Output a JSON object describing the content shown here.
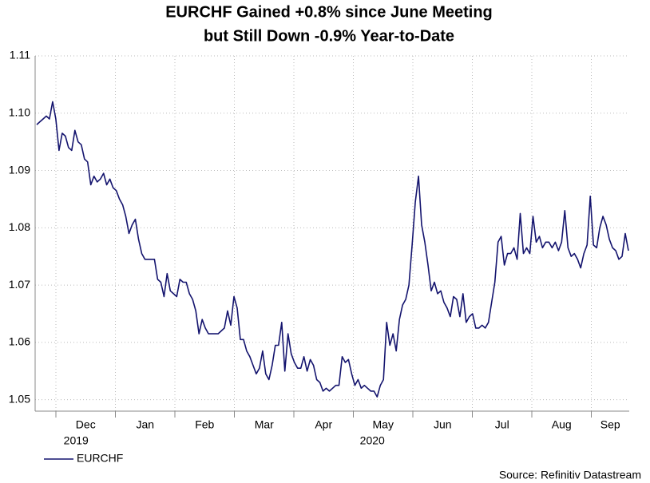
{
  "chart_data": {
    "type": "line",
    "title": [
      "EURCHF Gained +0.8% since June Meeting",
      "but Still Down -0.9% Year-to-Date"
    ],
    "x_labels": [
      "Dec",
      "Jan",
      "Feb",
      "Mar",
      "Apr",
      "May",
      "Jun",
      "Jul",
      "Aug",
      "Sep"
    ],
    "year_labels": [
      "2019",
      "2020"
    ],
    "ylim": [
      1.048,
      1.11
    ],
    "yticks": [
      1.05,
      1.06,
      1.07,
      1.08,
      1.09,
      {
        "value": 1.1,
        "label": "1.10"
      },
      1.11
    ],
    "grid": true,
    "legend": "bottom-left",
    "source": "Source: Refinitiv Datastream",
    "series": [
      {
        "name": "EURCHF",
        "color": "#14146e",
        "values": [
          1.098,
          1.0985,
          1.099,
          1.0995,
          1.099,
          1.102,
          1.099,
          1.0935,
          1.0965,
          1.096,
          1.094,
          1.0935,
          1.097,
          1.095,
          1.0945,
          1.092,
          1.0915,
          1.0875,
          1.089,
          1.088,
          1.0885,
          1.0895,
          1.0875,
          1.0885,
          1.087,
          1.0865,
          1.085,
          1.084,
          1.082,
          1.079,
          1.0805,
          1.0815,
          1.078,
          1.0755,
          1.0745,
          1.0745,
          1.0745,
          1.0745,
          1.071,
          1.0705,
          1.068,
          1.072,
          1.069,
          1.0685,
          1.068,
          1.071,
          1.0705,
          1.0705,
          1.0685,
          1.0675,
          1.0655,
          1.0615,
          1.064,
          1.0625,
          1.0615,
          1.0615,
          1.0615,
          1.0615,
          1.062,
          1.0625,
          1.0655,
          1.063,
          1.068,
          1.066,
          1.0605,
          1.0605,
          1.0585,
          1.0575,
          1.056,
          1.0545,
          1.0555,
          1.0585,
          1.0545,
          1.0535,
          1.056,
          1.0595,
          1.0595,
          1.0635,
          1.055,
          1.0615,
          1.058,
          1.0565,
          1.0555,
          1.0555,
          1.0575,
          1.055,
          1.057,
          1.056,
          1.0535,
          1.053,
          1.0515,
          1.052,
          1.0515,
          1.052,
          1.0525,
          1.0525,
          1.0575,
          1.0565,
          1.057,
          1.0545,
          1.0525,
          1.0535,
          1.052,
          1.0525,
          1.052,
          1.0515,
          1.0515,
          1.0505,
          1.0525,
          1.0535,
          1.0635,
          1.0595,
          1.0615,
          1.0585,
          1.064,
          1.0665,
          1.0675,
          1.07,
          1.077,
          1.0845,
          1.089,
          1.0805,
          1.0775,
          1.0735,
          1.069,
          1.0705,
          1.0685,
          1.069,
          1.067,
          1.066,
          1.0645,
          1.068,
          1.0675,
          1.0645,
          1.0685,
          1.0635,
          1.0645,
          1.065,
          1.0625,
          1.0625,
          1.063,
          1.0625,
          1.0635,
          1.067,
          1.0705,
          1.0775,
          1.0785,
          1.0735,
          1.0755,
          1.0755,
          1.0765,
          1.0745,
          1.0825,
          1.0755,
          1.0765,
          1.0755,
          1.082,
          1.0775,
          1.0785,
          1.0765,
          1.0775,
          1.0775,
          1.0765,
          1.0775,
          1.076,
          1.0775,
          1.083,
          1.0765,
          1.075,
          1.0755,
          1.0745,
          1.073,
          1.0755,
          1.077,
          1.0855,
          1.077,
          1.0765,
          1.08,
          1.082,
          1.0805,
          1.078,
          1.0765,
          1.076,
          1.0745,
          1.075,
          1.079,
          1.076
        ]
      }
    ]
  }
}
